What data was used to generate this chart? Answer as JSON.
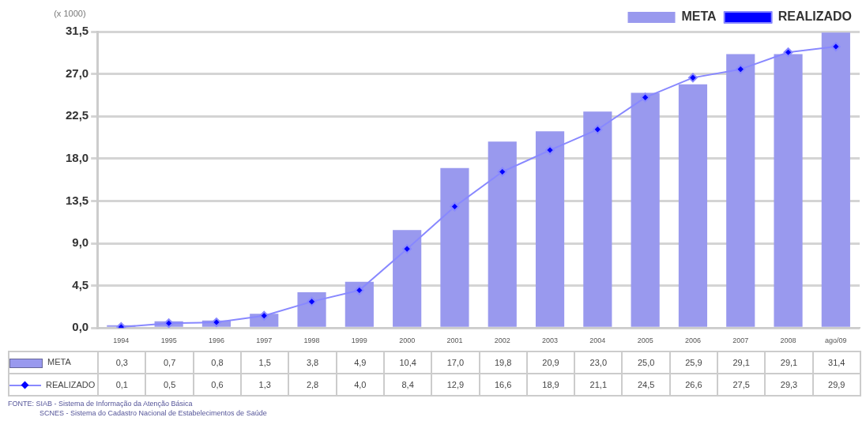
{
  "chart_data": {
    "type": "bar",
    "ylabel": "(x 1000)",
    "categories": [
      "1994",
      "1995",
      "1996",
      "1997",
      "1998",
      "1999",
      "2000",
      "2001",
      "2002",
      "2003",
      "2004",
      "2005",
      "2006",
      "2007",
      "2008",
      "ago/09"
    ],
    "series": [
      {
        "name": "META",
        "color": "#9999ee",
        "values": [
          0.3,
          0.7,
          0.8,
          1.5,
          3.8,
          4.9,
          10.4,
          17.0,
          19.8,
          20.9,
          23.0,
          25.0,
          25.9,
          29.1,
          29.1,
          31.4
        ],
        "value_labels": [
          "0,3",
          "0,7",
          "0,8",
          "1,5",
          "3,8",
          "4,9",
          "10,4",
          "17,0",
          "19,8",
          "20,9",
          "23,0",
          "25,0",
          "25,9",
          "29,1",
          "29,1",
          "31,4"
        ]
      },
      {
        "name": "REALIZADO",
        "type": "line",
        "color": "#0000ff",
        "values": [
          0.1,
          0.5,
          0.6,
          1.3,
          2.8,
          4.0,
          8.4,
          12.9,
          16.6,
          18.9,
          21.1,
          24.5,
          26.6,
          27.5,
          29.3,
          29.9
        ],
        "value_labels": [
          "0,1",
          "0,5",
          "0,6",
          "1,3",
          "2,8",
          "4,0",
          "8,4",
          "12,9",
          "16,6",
          "18,9",
          "21,1",
          "24,5",
          "26,6",
          "27,5",
          "29,3",
          "29,9"
        ]
      }
    ],
    "ylim": [
      0,
      31.5
    ],
    "yticks": [
      {
        "value": 0,
        "label": "0,0"
      },
      {
        "value": 4.5,
        "label": "4,5"
      },
      {
        "value": 9,
        "label": "9,0"
      },
      {
        "value": 13.5,
        "label": "13,5"
      },
      {
        "value": 18,
        "label": "18,0"
      },
      {
        "value": 22.5,
        "label": "22,5"
      },
      {
        "value": 27,
        "label": "27,0"
      },
      {
        "value": 31.5,
        "label": "31,5"
      }
    ],
    "grid": "y",
    "legend": "top right",
    "marker": "diamond",
    "annotations": [
      "FONTE: SIAB - Sistema de Informação da Atenção Básica",
      "SCNES - Sistema do Cadastro Nacional de Estabelecimentos de Saúde"
    ]
  }
}
